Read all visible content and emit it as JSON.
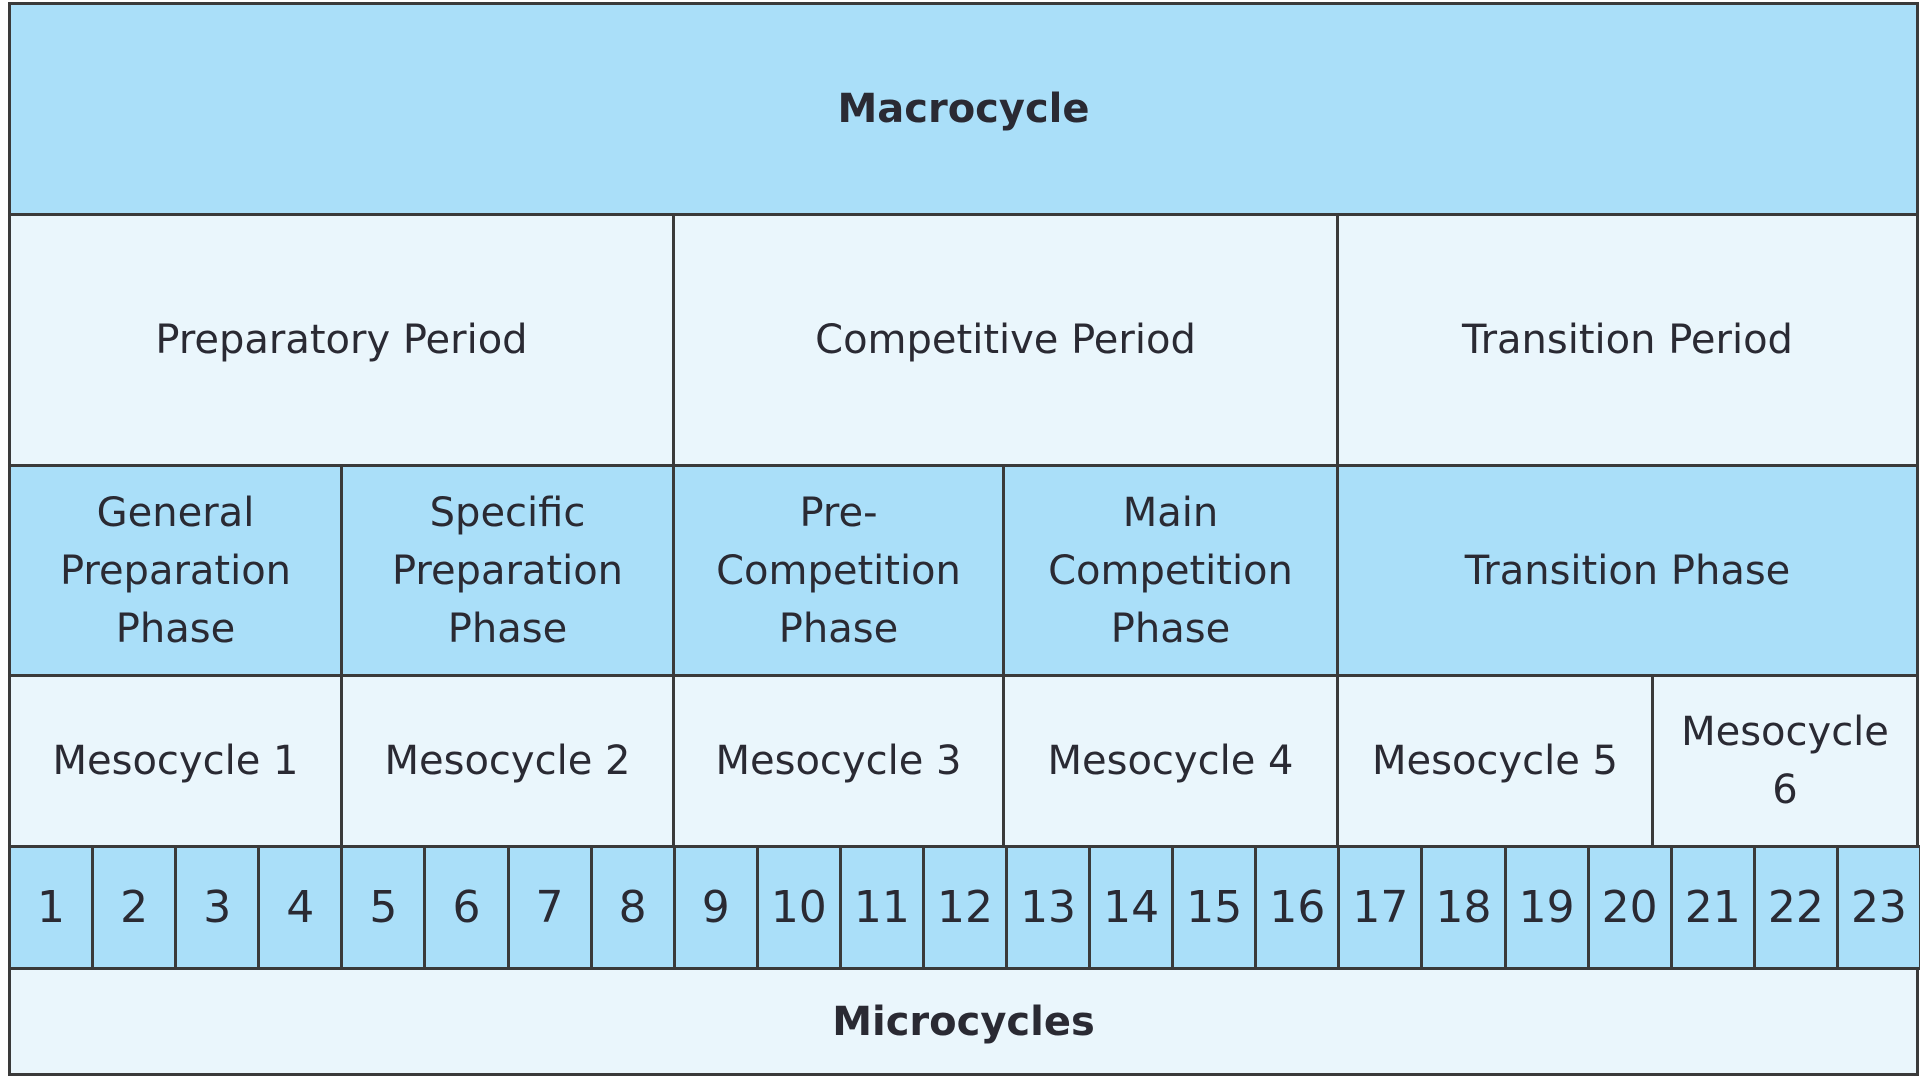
{
  "macrocycle": "Macrocycle",
  "periods": [
    "Preparatory Period",
    "Competitive Period",
    "Transition Period"
  ],
  "phases": [
    "General Preparation Phase",
    "Specific Preparation Phase",
    "Pre-Competition Phase",
    "Main Competition Phase",
    "Transition Phase"
  ],
  "mesocycles": [
    "Mesocycle 1",
    "Mesocycle 2",
    "Mesocycle 3",
    "Mesocycle 4",
    "Mesocycle 5",
    "Mesocycle 6"
  ],
  "microcycle_numbers": [
    "1",
    "2",
    "3",
    "4",
    "5",
    "6",
    "7",
    "8",
    "9",
    "10",
    "11",
    "12",
    "13",
    "14",
    "15",
    "16",
    "17",
    "18",
    "19",
    "20",
    "21",
    "22",
    "23"
  ],
  "microcycles": "Microcycles",
  "colors": {
    "header_blue": "#aadff9",
    "light_blue": "#eaf6fc",
    "border": "#3a3a3a"
  }
}
